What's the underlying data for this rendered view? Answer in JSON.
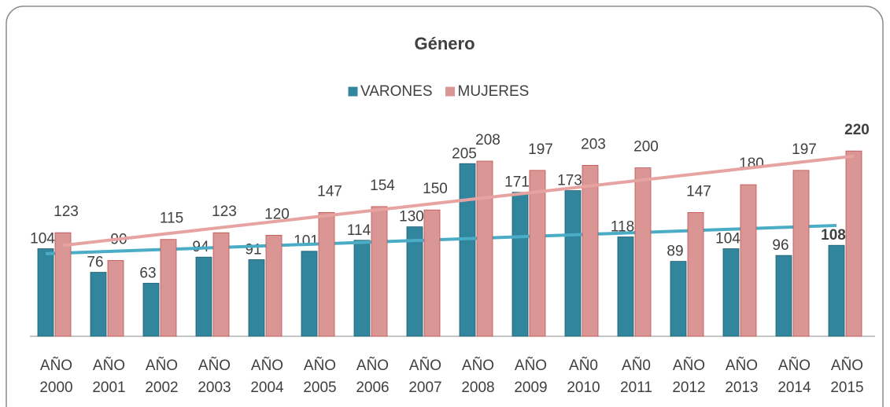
{
  "chart_data": {
    "type": "bar",
    "title": "Género",
    "categories": [
      "AÑO 2000",
      "AÑO 2001",
      "AÑO 2002",
      "AÑO 2003",
      "AÑO 2004",
      "AÑO 2005",
      "AÑO 2006",
      "AÑO 2007",
      "AÑO 2008",
      "AÑO 2009",
      "AÑ0 2010",
      "AÑ0 2011",
      "AÑO 2012",
      "AÑO 2013",
      "AÑO 2014",
      "AÑO 2015"
    ],
    "series": [
      {
        "name": "VARONES",
        "color": "#31859c",
        "trend_color": "#4bacc6",
        "values": [
          104,
          76,
          63,
          94,
          91,
          101,
          114,
          130,
          205,
          171,
          173,
          118,
          89,
          104,
          96,
          108
        ]
      },
      {
        "name": "MUJERES",
        "color": "#d99694",
        "trend_color": "#e6a3a1",
        "values": [
          123,
          90,
          115,
          123,
          120,
          147,
          154,
          150,
          208,
          197,
          203,
          200,
          147,
          180,
          197,
          220
        ]
      }
    ],
    "ylim": [
      0,
      250
    ],
    "trendline": true,
    "legend": "top"
  }
}
